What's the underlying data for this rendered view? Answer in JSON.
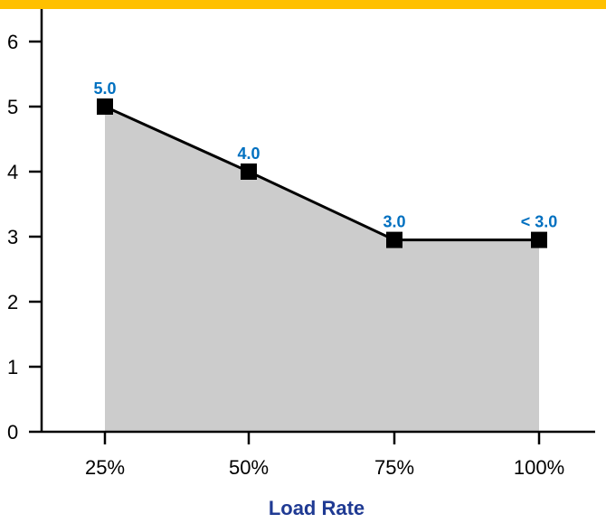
{
  "colors": {
    "top_band": "#FFC000",
    "area_fill": "#CCCCCC",
    "line": "#000000",
    "label": "#0070C0",
    "axis_title": "#1F3A93"
  },
  "chart_data": {
    "type": "area",
    "categories": [
      "25%",
      "50%",
      "75%",
      "100%"
    ],
    "values": [
      5.0,
      4.0,
      2.95,
      2.95
    ],
    "data_labels": [
      "5.0",
      "4.0",
      "3.0",
      "< 3.0"
    ],
    "xlabel": "Load Rate",
    "ylabel": "",
    "ylim": [
      0,
      6
    ],
    "yticks": [
      0,
      1,
      2,
      3,
      4,
      5,
      6
    ],
    "grid": false,
    "marker": "square"
  }
}
